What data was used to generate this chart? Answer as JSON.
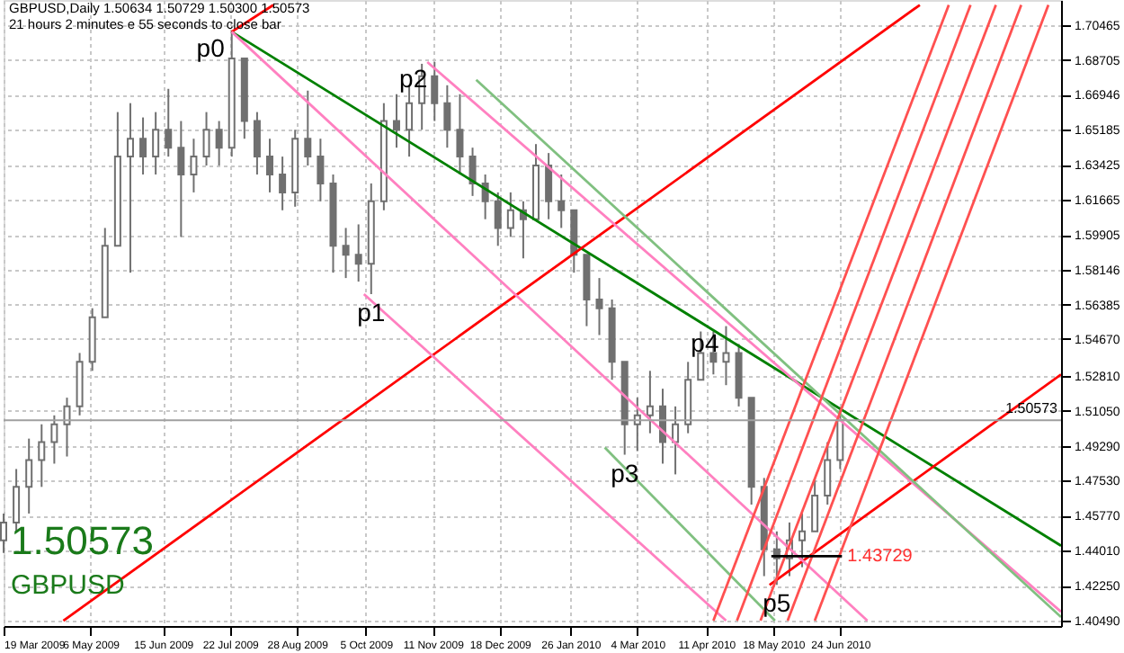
{
  "chart_data": {
    "type": "candlestick",
    "title": "GBPUSD,Daily  1.50634 1.50729 1.50300 1.50573",
    "subtitle": "21 hours 2 minutes e 55 seconds to close bar",
    "x": [
      "2009-03-19",
      "2009-03-26",
      "2009-04-02",
      "2009-04-09",
      "2009-04-16",
      "2009-04-23",
      "2009-04-30",
      "2009-05-07",
      "2009-05-14",
      "2009-05-21",
      "2009-05-28",
      "2009-06-04",
      "2009-06-11",
      "2009-06-18",
      "2009-06-25",
      "2009-07-02",
      "2009-07-09",
      "2009-07-16",
      "2009-07-23",
      "2009-07-30",
      "2009-08-06",
      "2009-08-13",
      "2009-08-20",
      "2009-08-27",
      "2009-09-03",
      "2009-09-10",
      "2009-09-17",
      "2009-09-24",
      "2009-10-01",
      "2009-10-08",
      "2009-10-15",
      "2009-10-22",
      "2009-10-29",
      "2009-11-05",
      "2009-11-12",
      "2009-11-19",
      "2009-11-26",
      "2009-12-03",
      "2009-12-10",
      "2009-12-17",
      "2009-12-24",
      "2009-12-31",
      "2010-01-07",
      "2010-01-14",
      "2010-01-21",
      "2010-01-28",
      "2010-02-04",
      "2010-02-11",
      "2010-02-18",
      "2010-02-25",
      "2010-03-04",
      "2010-03-11",
      "2010-03-18",
      "2010-03-25",
      "2010-04-01",
      "2010-04-08",
      "2010-04-15",
      "2010-04-22",
      "2010-04-29",
      "2010-05-06",
      "2010-05-13",
      "2010-05-20",
      "2010-05-27",
      "2010-06-03",
      "2010-06-10",
      "2010-06-17",
      "2010-06-24"
    ],
    "ohlc": [
      [
        1.4453,
        1.4588,
        1.439,
        1.4543
      ],
      [
        1.4543,
        1.4812,
        1.4498,
        1.4722
      ],
      [
        1.4722,
        1.4965,
        1.4588,
        1.4857
      ],
      [
        1.4857,
        1.5037,
        1.4722,
        1.4947
      ],
      [
        1.4947,
        1.5082,
        1.4839,
        1.5037
      ],
      [
        1.5037,
        1.5171,
        1.4875,
        1.5127
      ],
      [
        1.5127,
        1.5396,
        1.5082,
        1.5351
      ],
      [
        1.5351,
        1.5621,
        1.5306,
        1.5576
      ],
      [
        1.5576,
        1.6025,
        1.5576,
        1.5935
      ],
      [
        1.5935,
        1.6608,
        1.5935,
        1.6384
      ],
      [
        1.6384,
        1.6653,
        1.58,
        1.6474
      ],
      [
        1.6474,
        1.6581,
        1.6294,
        1.6384
      ],
      [
        1.6384,
        1.6608,
        1.6294,
        1.6519
      ],
      [
        1.6519,
        1.6725,
        1.6384,
        1.6429
      ],
      [
        1.6429,
        1.6563,
        1.598,
        1.6294
      ],
      [
        1.6294,
        1.6474,
        1.6204,
        1.6384
      ],
      [
        1.6384,
        1.6608,
        1.6339,
        1.6519
      ],
      [
        1.6519,
        1.6563,
        1.6339,
        1.6429
      ],
      [
        1.6429,
        1.7012,
        1.6384,
        1.6878
      ],
      [
        1.6878,
        1.6878,
        1.6474,
        1.6563
      ],
      [
        1.6563,
        1.6608,
        1.6294,
        1.6384
      ],
      [
        1.6384,
        1.6474,
        1.6204,
        1.6294
      ],
      [
        1.6294,
        1.6384,
        1.6114,
        1.6204
      ],
      [
        1.6204,
        1.6519,
        1.6132,
        1.6474
      ],
      [
        1.6474,
        1.6716,
        1.6339,
        1.6384
      ],
      [
        1.6384,
        1.6474,
        1.6159,
        1.6249
      ],
      [
        1.6249,
        1.6294,
        1.58,
        1.5935
      ],
      [
        1.5935,
        1.6025,
        1.5773,
        1.589
      ],
      [
        1.589,
        1.6043,
        1.5755,
        1.5845
      ],
      [
        1.5845,
        1.6249,
        1.5692,
        1.6159
      ],
      [
        1.6159,
        1.6653,
        1.6114,
        1.6563
      ],
      [
        1.6563,
        1.6698,
        1.6429,
        1.6519
      ],
      [
        1.6519,
        1.6743,
        1.6384,
        1.6653
      ],
      [
        1.6653,
        1.6851,
        1.6519,
        1.6788
      ],
      [
        1.6788,
        1.686,
        1.6563,
        1.6653
      ],
      [
        1.6653,
        1.6743,
        1.6429,
        1.6519
      ],
      [
        1.6519,
        1.6698,
        1.6294,
        1.6384
      ],
      [
        1.6384,
        1.6429,
        1.6186,
        1.6249
      ],
      [
        1.6249,
        1.6294,
        1.6069,
        1.6159
      ],
      [
        1.6159,
        1.6204,
        1.5935,
        1.6025
      ],
      [
        1.6025,
        1.6204,
        1.598,
        1.6114
      ],
      [
        1.6114,
        1.6159,
        1.5872,
        1.6069
      ],
      [
        1.6069,
        1.6447,
        1.6069,
        1.6339
      ],
      [
        1.6339,
        1.6402,
        1.6069,
        1.6159
      ],
      [
        1.6159,
        1.6294,
        1.6025,
        1.6114
      ],
      [
        1.6114,
        1.6114,
        1.58,
        1.589
      ],
      [
        1.589,
        1.589,
        1.5531,
        1.5665
      ],
      [
        1.5665,
        1.5773,
        1.5486,
        1.5621
      ],
      [
        1.5621,
        1.5665,
        1.5261,
        1.5351
      ],
      [
        1.5351,
        1.5351,
        1.4884,
        1.5037
      ],
      [
        1.5037,
        1.5171,
        1.4902,
        1.5082
      ],
      [
        1.5082,
        1.5306,
        1.4992,
        1.5127
      ],
      [
        1.5127,
        1.5216,
        1.4839,
        1.4947
      ],
      [
        1.4947,
        1.5127,
        1.4785,
        1.5037
      ],
      [
        1.5037,
        1.5351,
        1.4992,
        1.5261
      ],
      [
        1.5261,
        1.5504,
        1.5261,
        1.5396
      ],
      [
        1.5396,
        1.5504,
        1.5288,
        1.5351
      ],
      [
        1.5351,
        1.5531,
        1.5234,
        1.5396
      ],
      [
        1.5396,
        1.5441,
        1.5127,
        1.5171
      ],
      [
        1.5171,
        1.5171,
        1.4633,
        1.4722
      ],
      [
        1.4722,
        1.4767,
        1.4273,
        1.4408
      ],
      [
        1.4408,
        1.4498,
        1.4229,
        1.4363
      ],
      [
        1.4363,
        1.4543,
        1.4273,
        1.4453
      ],
      [
        1.4453,
        1.4588,
        1.4318,
        1.4498
      ],
      [
        1.4498,
        1.4767,
        1.4498,
        1.4678
      ],
      [
        1.4678,
        1.4947,
        1.4633,
        1.4857
      ],
      [
        1.4857,
        1.5109,
        1.4812,
        1.50573
      ]
    ],
    "series": [
      {
        "type": "line",
        "color": "#008000",
        "x": [
          "2009-07-23",
          "2010-10-24"
        ],
        "values": [
          1.7012,
          1.4426
        ]
      },
      {
        "type": "line",
        "color": "#ff0000",
        "x": [
          "2009-04-21",
          "2010-08-07"
        ],
        "values": [
          1.4049,
          1.7147
        ]
      },
      {
        "type": "line",
        "color": "#ff0000",
        "x": [
          "2009-07-23",
          "2009-08-15"
        ],
        "values": [
          1.7012,
          1.7147
        ]
      },
      {
        "type": "line",
        "color": "#ff0000",
        "x": [
          "2010-05-16",
          "2010-10-24"
        ],
        "values": [
          1.4229,
          1.5288
        ]
      },
      {
        "type": "line",
        "color": "#ff80c0",
        "x": [
          "2009-07-23",
          "2010-07-09"
        ],
        "values": [
          1.7012,
          1.4049
        ]
      },
      {
        "type": "line",
        "color": "#ff80c0",
        "x": [
          "2009-10-04",
          "2010-04-22"
        ],
        "values": [
          1.5692,
          1.4049
        ]
      },
      {
        "type": "line",
        "color": "#ff80c0",
        "x": [
          "2009-11-08",
          "2010-10-24"
        ],
        "values": [
          1.686,
          1.4094
        ]
      },
      {
        "type": "line",
        "color": "#80c080",
        "x": [
          "2009-12-05",
          "2010-10-24"
        ],
        "values": [
          1.677,
          1.4067
        ]
      },
      {
        "type": "line",
        "color": "#80c080",
        "x": [
          "2010-02-14",
          "2010-05-19"
        ],
        "values": [
          1.492,
          1.4049
        ]
      },
      {
        "type": "line",
        "color": "#ff5050",
        "x": [
          "2010-04-15",
          "2010-08-23"
        ],
        "values": [
          1.4049,
          1.7147
        ]
      },
      {
        "type": "line",
        "color": "#ff5050",
        "x": [
          "2010-04-28",
          "2010-09-04"
        ],
        "values": [
          1.4049,
          1.7147
        ]
      },
      {
        "type": "line",
        "color": "#ff5050",
        "x": [
          "2010-05-11",
          "2010-09-18"
        ],
        "values": [
          1.4049,
          1.7147
        ]
      },
      {
        "type": "line",
        "color": "#ff5050",
        "x": [
          "2010-05-26",
          "2010-10-02"
        ],
        "values": [
          1.4049,
          1.7147
        ]
      },
      {
        "type": "line",
        "color": "#ff5050",
        "x": [
          "2010-06-10",
          "2010-10-17"
        ],
        "values": [
          1.4049,
          1.7147
        ]
      },
      {
        "type": "line",
        "color": "#000000",
        "x": [
          "2010-05-17",
          "2010-06-25"
        ],
        "values": [
          1.43729,
          1.43729
        ]
      }
    ],
    "ref_lines": [
      {
        "axis": "y",
        "value": 1.50573,
        "label": "1.50573",
        "color": "#a0a0a0"
      }
    ],
    "annotations": [
      {
        "text": "p0",
        "x": "2009-07-23",
        "y": 1.7012
      },
      {
        "text": "p1",
        "x": "2009-10-08",
        "y": 1.5692
      },
      {
        "text": "p2",
        "x": "2009-11-12",
        "y": 1.686
      },
      {
        "text": "p3",
        "x": "2010-02-25",
        "y": 1.4884
      },
      {
        "text": "p4",
        "x": "2010-04-22",
        "y": 1.5531
      },
      {
        "text": "p5",
        "x": "2010-05-20",
        "y": 1.4229
      },
      {
        "text": "1.43729",
        "x": "2010-06-25",
        "y": 1.43729
      },
      "1.50573",
      "GBPUSD"
    ],
    "xlim": [
      "2009-03-19",
      "2010-10-24"
    ],
    "ylim": [
      1.4022,
      1.7172
    ],
    "xticks": [
      {
        "value": "2009-03-19",
        "label": "19 Mar 2009"
      },
      {
        "value": "2009-05-06",
        "label": "6 May 2009"
      },
      {
        "value": "2009-06-15",
        "label": "15 Jun 2009"
      },
      {
        "value": "2009-07-22",
        "label": "22 Jul 2009"
      },
      {
        "value": "2009-08-28",
        "label": "28 Aug 2009"
      },
      {
        "value": "2009-10-05",
        "label": "5 Oct 2009"
      },
      {
        "value": "2009-11-11",
        "label": "11 Nov 2009"
      },
      {
        "value": "2009-12-18",
        "label": "18 Dec 2009"
      },
      {
        "value": "2010-01-26",
        "label": "26 Jan 2010"
      },
      {
        "value": "2010-03-04",
        "label": "4 Mar 2010"
      },
      {
        "value": "2010-04-11",
        "label": "11 Apr 2010"
      },
      {
        "value": "2010-05-18",
        "label": "18 May 2010"
      },
      {
        "value": "2010-06-24",
        "label": "24 Jun 2010"
      }
    ],
    "yticks": [
      {
        "value": 1.70465,
        "label": "1.70465"
      },
      {
        "value": 1.68705,
        "label": "1.68705"
      },
      {
        "value": 1.66946,
        "label": "1.66946"
      },
      {
        "value": 1.65185,
        "label": "1.65185"
      },
      {
        "value": 1.63425,
        "label": "1.63425"
      },
      {
        "value": 1.61665,
        "label": "1.61665"
      },
      {
        "value": 1.59905,
        "label": "1.59905"
      },
      {
        "value": 1.58146,
        "label": "1.58146"
      },
      {
        "value": 1.56385,
        "label": "1.56385"
      },
      {
        "value": 1.5467,
        "label": "1.54670"
      },
      {
        "value": 1.5281,
        "label": "1.52810"
      },
      {
        "value": 1.5105,
        "label": "1.51050"
      },
      {
        "value": 1.4929,
        "label": "1.49290"
      },
      {
        "value": 1.4753,
        "label": "1.47530"
      },
      {
        "value": 1.4577,
        "label": "1.45770"
      },
      {
        "value": 1.4401,
        "label": "1.44010"
      },
      {
        "value": 1.4225,
        "label": "1.42250"
      },
      {
        "value": 1.4049,
        "label": "1.40490"
      }
    ],
    "grid": true
  }
}
